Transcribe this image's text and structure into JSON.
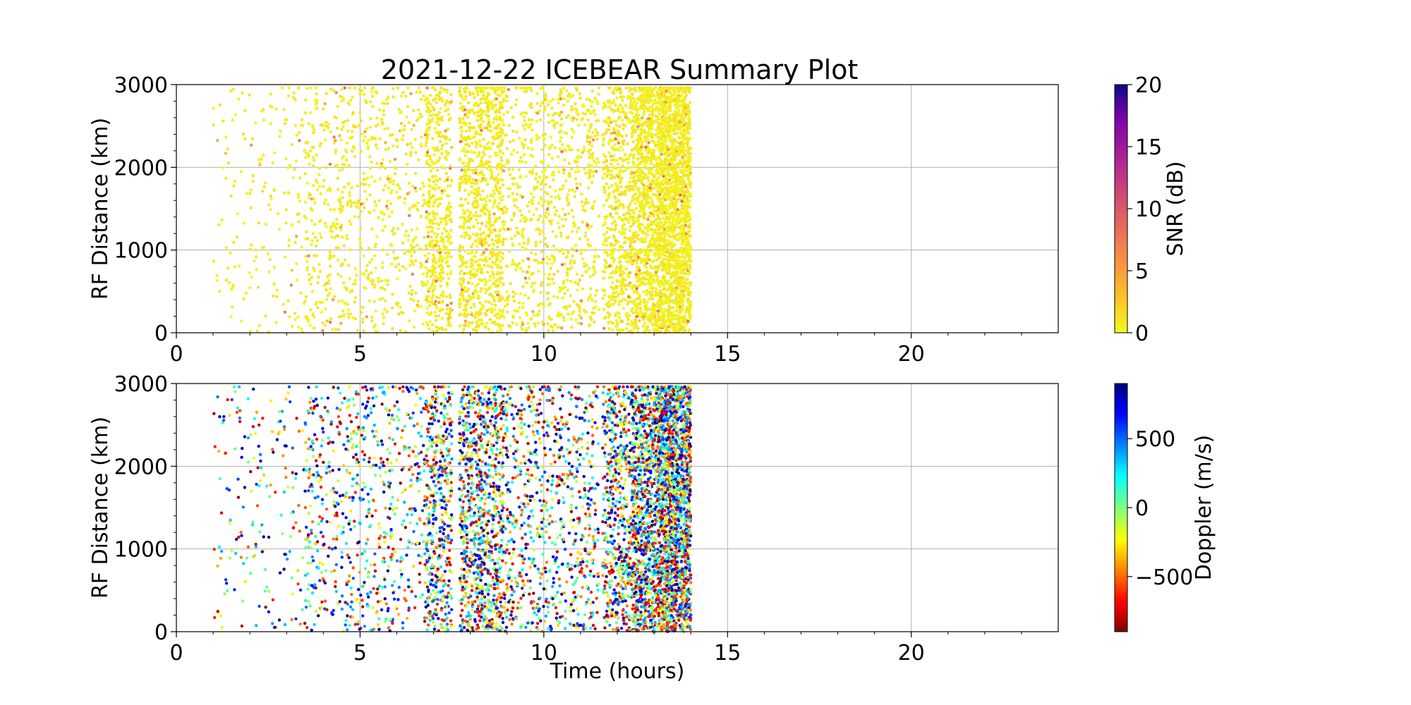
{
  "title": "2021-12-22 ICEBEAR Summary Plot",
  "chart_data": [
    {
      "type": "scatter",
      "panel": "top",
      "ylabel": "RF Distance (km)",
      "xlabel": "",
      "xlim": [
        0,
        24
      ],
      "ylim": [
        0,
        3000
      ],
      "xticks": [
        0,
        5,
        10,
        15,
        20
      ],
      "yticks": [
        0,
        1000,
        2000,
        3000
      ],
      "grid": true,
      "color_variable": "SNR (dB)",
      "colormap": "plasma_r",
      "colorbar": {
        "label": "SNR (dB)",
        "range": [
          0,
          20
        ],
        "ticks": [
          0,
          5,
          10,
          15,
          20
        ]
      },
      "points_note": "dense scatter between 1 and 14 h, 0–3000 km; mostly SNR near 0 dB",
      "bands": [
        {
          "x_range": [
            1.0,
            3.5
          ],
          "count": 180
        },
        {
          "x_range": [
            3.5,
            6.8
          ],
          "count": 700
        },
        {
          "x_range": [
            6.8,
            7.5
          ],
          "count": 450
        },
        {
          "x_range": [
            7.7,
            8.9
          ],
          "count": 900
        },
        {
          "x_range": [
            8.9,
            11.5
          ],
          "count": 800
        },
        {
          "x_range": [
            11.6,
            12.4
          ],
          "count": 550
        },
        {
          "x_range": [
            12.4,
            13.1
          ],
          "count": 900
        },
        {
          "x_range": [
            13.1,
            14.0
          ],
          "count": 1800
        }
      ],
      "snr_distribution": {
        "typical": 0.5,
        "occasional_max": 9
      }
    },
    {
      "type": "scatter",
      "panel": "bottom",
      "ylabel": "RF Distance (km)",
      "xlabel": "Time (hours)",
      "xlim": [
        0,
        24
      ],
      "ylim": [
        0,
        3000
      ],
      "xticks": [
        0,
        5,
        10,
        15,
        20
      ],
      "yticks": [
        0,
        1000,
        2000,
        3000
      ],
      "grid": true,
      "color_variable": "Doppler (m/s)",
      "colormap": "jet_r",
      "colorbar": {
        "label": "Doppler (m/s)",
        "range": [
          -900,
          900
        ],
        "ticks": [
          -500,
          0,
          500
        ]
      },
      "bands": [
        {
          "x_range": [
            1.0,
            3.5
          ],
          "count": 180
        },
        {
          "x_range": [
            3.5,
            6.8
          ],
          "count": 700
        },
        {
          "x_range": [
            6.8,
            7.5
          ],
          "count": 450
        },
        {
          "x_range": [
            7.7,
            8.9
          ],
          "count": 900
        },
        {
          "x_range": [
            8.9,
            11.5
          ],
          "count": 800
        },
        {
          "x_range": [
            11.6,
            12.4
          ],
          "count": 550
        },
        {
          "x_range": [
            12.4,
            13.1
          ],
          "count": 900
        },
        {
          "x_range": [
            13.1,
            14.0
          ],
          "count": 1800
        }
      ]
    }
  ]
}
